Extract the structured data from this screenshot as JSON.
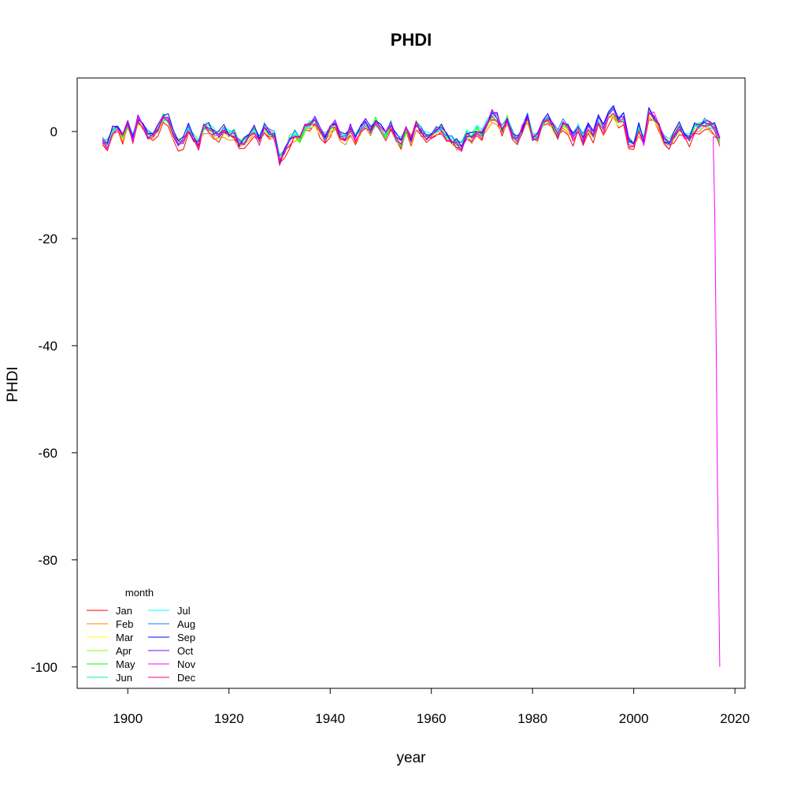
{
  "chart_data": {
    "type": "line",
    "title": "PHDI",
    "xlabel": "year",
    "ylabel": "PHDI",
    "xlim": [
      1890,
      2022
    ],
    "ylim": [
      -104,
      10
    ],
    "x_ticks": [
      "1900",
      "1920",
      "1940",
      "1960",
      "1980",
      "2000",
      "2020"
    ],
    "y_ticks": [
      "0",
      "-20",
      "-40",
      "-60",
      "-80",
      "-100"
    ],
    "grid": false,
    "legend": {
      "title": "month",
      "position": "bottom-left",
      "columns": 2
    },
    "x": [
      1895,
      1896,
      1897,
      1898,
      1899,
      1900,
      1901,
      1902,
      1903,
      1904,
      1905,
      1906,
      1907,
      1908,
      1909,
      1910,
      1911,
      1912,
      1913,
      1914,
      1915,
      1916,
      1917,
      1918,
      1919,
      1920,
      1921,
      1922,
      1923,
      1924,
      1925,
      1926,
      1927,
      1928,
      1929,
      1930,
      1931,
      1932,
      1933,
      1934,
      1935,
      1936,
      1937,
      1938,
      1939,
      1940,
      1941,
      1942,
      1943,
      1944,
      1945,
      1946,
      1947,
      1948,
      1949,
      1950,
      1951,
      1952,
      1953,
      1954,
      1955,
      1956,
      1957,
      1958,
      1959,
      1960,
      1961,
      1962,
      1963,
      1964,
      1965,
      1966,
      1967,
      1968,
      1969,
      1970,
      1971,
      1972,
      1973,
      1974,
      1975,
      1976,
      1977,
      1978,
      1979,
      1980,
      1981,
      1982,
      1983,
      1984,
      1985,
      1986,
      1987,
      1988,
      1989,
      1990,
      1991,
      1992,
      1993,
      1994,
      1995,
      1996,
      1997,
      1998,
      1999,
      2000,
      2001,
      2002,
      2003,
      2004,
      2005,
      2006,
      2007,
      2008,
      2009,
      2010,
      2011,
      2012,
      2013,
      2014,
      2015,
      2016,
      2017
    ],
    "base_values": [
      -1.5,
      -2.2,
      0.3,
      0.8,
      -0.8,
      1.5,
      -1.2,
      2.0,
      1.2,
      -0.5,
      -1.0,
      0.5,
      2.5,
      2.0,
      -0.5,
      -1.8,
      -1.5,
      0.5,
      -1.2,
      -2.0,
      0.8,
      0.5,
      -0.2,
      -0.5,
      0.2,
      -0.5,
      -0.3,
      -2.0,
      -1.8,
      -1.0,
      0.5,
      -1.5,
      0.8,
      -0.2,
      -0.8,
      -4.8,
      -3.5,
      -1.5,
      -0.5,
      -1.2,
      0.8,
      1.2,
      1.8,
      0.2,
      -1.0,
      0.5,
      1.5,
      -0.5,
      -1.2,
      0.5,
      -1.0,
      0.3,
      1.5,
      0.2,
      1.8,
      0.5,
      -0.5,
      1.2,
      -1.0,
      -2.0,
      0.5,
      -1.2,
      1.5,
      0.2,
      -0.8,
      -0.5,
      0.3,
      0.5,
      -0.8,
      -1.5,
      -2.0,
      -2.5,
      -0.5,
      -1.0,
      0.2,
      -0.5,
      1.5,
      3.0,
      2.5,
      0.5,
      2.0,
      -0.5,
      -1.5,
      0.5,
      2.5,
      -1.0,
      -0.8,
      1.5,
      2.5,
      1.0,
      -0.5,
      1.5,
      0.8,
      -1.0,
      0.5,
      -1.2,
      0.8,
      -0.5,
      2.0,
      0.5,
      2.5,
      3.5,
      1.8,
      2.5,
      -1.8,
      -2.5,
      0.5,
      -1.5,
      3.5,
      2.5,
      0.5,
      -1.2,
      -2.0,
      -0.5,
      1.0,
      -0.5,
      -1.2,
      0.5,
      0.8,
      1.5,
      1.2,
      0.5,
      -1.5
    ],
    "tail_series": {
      "name": "Nov",
      "x": [
        2015.7,
        2016.0,
        2016.3,
        2016.5,
        2016.8,
        2017.0
      ],
      "values": [
        -1.0,
        -15.0,
        -40.0,
        -62.0,
        -85.0,
        -100.0
      ]
    },
    "series": [
      {
        "name": "Jan",
        "color": "#ff0000",
        "offset": -0.9,
        "amp": 1.1,
        "seed": 1
      },
      {
        "name": "Feb",
        "color": "#ff8000",
        "offset": -0.6,
        "amp": 1.0,
        "seed": 2
      },
      {
        "name": "Mar",
        "color": "#ffff00",
        "offset": -0.3,
        "amp": 0.9,
        "seed": 3
      },
      {
        "name": "Apr",
        "color": "#80ff00",
        "offset": -0.2,
        "amp": 1.0,
        "seed": 4
      },
      {
        "name": "May",
        "color": "#00ff00",
        "offset": 0.0,
        "amp": 1.1,
        "seed": 5
      },
      {
        "name": "Jun",
        "color": "#00ff80",
        "offset": 0.1,
        "amp": 1.0,
        "seed": 6
      },
      {
        "name": "Jul",
        "color": "#00ffff",
        "offset": 0.2,
        "amp": 1.0,
        "seed": 7
      },
      {
        "name": "Aug",
        "color": "#0080ff",
        "offset": 0.2,
        "amp": 1.1,
        "seed": 8
      },
      {
        "name": "Sep",
        "color": "#0000ff",
        "offset": 0.3,
        "amp": 1.2,
        "seed": 9
      },
      {
        "name": "Oct",
        "color": "#8000ff",
        "offset": 0.1,
        "amp": 1.1,
        "seed": 10
      },
      {
        "name": "Nov",
        "color": "#ff00ff",
        "offset": -0.1,
        "amp": 1.2,
        "seed": 11
      },
      {
        "name": "Dec",
        "color": "#ff0080",
        "offset": -0.4,
        "amp": 1.1,
        "seed": 12
      }
    ]
  }
}
